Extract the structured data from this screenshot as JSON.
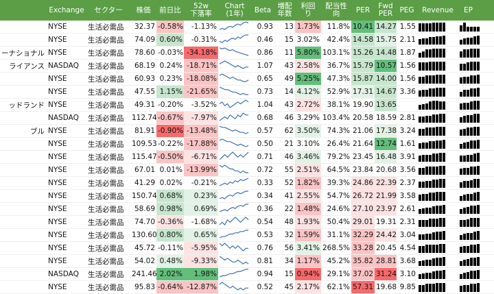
{
  "headers": {
    "name": "",
    "exchange": "Exchange",
    "sector": "セクター",
    "price": "株価",
    "change": "前日比",
    "w52": "52w\n下落率",
    "chart": "Chart\n(1年)",
    "beta": "Beta",
    "div_years": "増配\n年数",
    "yield": "利回\nり",
    "payout": "配当性\n向",
    "per": "PER",
    "fper": "Fwd\nPER",
    "peg": "PEG",
    "revenue": "Revenue",
    "eps": "EP"
  },
  "colors": {
    "header_bg": "#5b9e46",
    "strong_green": "#63be7b",
    "light_green": "#c6e6cd",
    "faint_green": "#e3f2e6",
    "strong_red": "#f8696b",
    "light_red": "#fbc4c4",
    "faint_red": "#fde2e2",
    "spark": "#3b6fb6"
  },
  "rows": [
    {
      "name": "",
      "exchange": "NYSE",
      "sector": "生活必需品",
      "price": "32.37",
      "change": "-0.58%",
      "w52": "-1.13%",
      "beta": "0.93",
      "div_years": "13",
      "yield": "1.73%",
      "payout": "11.8%",
      "per": "10.41",
      "fper": "14.27",
      "peg": "1.55",
      "change_bg": "light_red",
      "w52_bg": "",
      "yield_bg": "light_red",
      "per_bg": "strong_green",
      "fper_bg": "light_green",
      "spark": [
        5,
        6,
        5,
        7,
        8,
        7,
        9,
        10,
        9,
        11,
        12,
        11
      ],
      "rev": [
        9,
        9,
        9,
        9,
        10,
        10,
        10,
        10
      ],
      "eps": [
        4,
        6,
        3,
        3,
        3,
        3
      ]
    },
    {
      "name": "",
      "exchange": "NYSE",
      "sector": "生活必需品",
      "price": "74.09",
      "change": "0.60%",
      "w52": "-0.31%",
      "beta": "0.46",
      "div_years": "15",
      "yield": "3.02%",
      "payout": "42.4%",
      "per": "14.58",
      "fper": "15.75",
      "peg": "2.11",
      "change_bg": "light_green",
      "w52_bg": "",
      "yield_bg": "",
      "per_bg": "light_green",
      "fper_bg": "faint_green",
      "spark": [
        6,
        5,
        7,
        6,
        8,
        9,
        8,
        10,
        9,
        11,
        12,
        12
      ],
      "rev": [
        7,
        8,
        8,
        9,
        9,
        10,
        10,
        11
      ],
      "eps": [
        5,
        6,
        7,
        7,
        8,
        9
      ]
    },
    {
      "name": "ーナショナル",
      "exchange": "NYSE",
      "sector": "生活必需品",
      "price": "78.60",
      "change": "-0.03%",
      "w52": "-34.18%",
      "beta": "0.86",
      "div_years": "11",
      "yield": "5.80%",
      "payout": "103.1%",
      "per": "15.26",
      "fper": "14.48",
      "peg": "1.87",
      "change_bg": "",
      "w52_bg": "strong_red",
      "yield_bg": "strong_green",
      "per_bg": "light_green",
      "fper_bg": "light_green",
      "spark": [
        12,
        11,
        12,
        10,
        9,
        10,
        8,
        7,
        6,
        5,
        4,
        3
      ],
      "rev": [
        6,
        8,
        10,
        10,
        11,
        11,
        11,
        11
      ],
      "eps": [
        6,
        8,
        8,
        9,
        9,
        9
      ]
    },
    {
      "name": "ライアンス",
      "exchange": "NASDAQ",
      "sector": "生活必需品",
      "price": "68.19",
      "change": "0.24%",
      "w52": "-18.71%",
      "beta": "1.07",
      "div_years": "43",
      "yield": "2.58%",
      "payout": "36.7%",
      "per": "15.79",
      "fper": "10.57",
      "peg": "1.56",
      "change_bg": "",
      "w52_bg": "light_red",
      "yield_bg": "faint_red",
      "per_bg": "light_green",
      "fper_bg": "strong_green",
      "spark": [
        10,
        11,
        12,
        11,
        10,
        9,
        8,
        9,
        8,
        7,
        8,
        8
      ],
      "rev": [
        9,
        9,
        9,
        10,
        10,
        10,
        10,
        10
      ],
      "eps": [
        7,
        7,
        8,
        9,
        9,
        9
      ]
    },
    {
      "name": "",
      "exchange": "NYSE",
      "sector": "生活必需品",
      "price": "60.93",
      "change": "0.23%",
      "w52": "-18.08%",
      "beta": "0.65",
      "div_years": "49",
      "yield": "5.25%",
      "payout": "47.3%",
      "per": "15.87",
      "fper": "14.00",
      "peg": "1.56",
      "change_bg": "",
      "w52_bg": "light_red",
      "yield_bg": "strong_green",
      "per_bg": "light_green",
      "fper_bg": "light_green",
      "spark": [
        11,
        12,
        11,
        10,
        9,
        10,
        9,
        8,
        8,
        7,
        7,
        8
      ],
      "rev": [
        8,
        8,
        9,
        9,
        9,
        10,
        10,
        10
      ],
      "eps": [
        6,
        7,
        7,
        8,
        8,
        9
      ]
    },
    {
      "name": "",
      "exchange": "NYSE",
      "sector": "生活必需品",
      "price": "47.55",
      "change": "1.15%",
      "w52": "-21.65%",
      "beta": "0.73",
      "div_years": "14",
      "yield": "4.12%",
      "payout": "52.9%",
      "per": "17.31",
      "fper": "14.67",
      "peg": "3.36",
      "change_bg": "light_green",
      "w52_bg": "light_red",
      "yield_bg": "faint_green",
      "per_bg": "faint_green",
      "fper_bg": "light_green",
      "spark": [
        12,
        11,
        10,
        10,
        9,
        8,
        8,
        7,
        6,
        7,
        6,
        6
      ],
      "rev": [
        7,
        8,
        8,
        9,
        9,
        10,
        10,
        10
      ],
      "eps": [
        5,
        7,
        7,
        8,
        8,
        9
      ]
    },
    {
      "name": "ッドランド",
      "exchange": "NYSE",
      "sector": "生活必需品",
      "price": "49.31",
      "change": "-0.20%",
      "w52": "-3.52%",
      "beta": "1.04",
      "div_years": "43",
      "yield": "2.72%",
      "payout": "38.1%",
      "per": "19.90",
      "fper": "13.65",
      "peg": "",
      "change_bg": "",
      "w52_bg": "",
      "yield_bg": "faint_red",
      "per_bg": "",
      "fper_bg": "light_green",
      "spark": [
        8,
        9,
        7,
        8,
        6,
        7,
        8,
        9,
        8,
        9,
        10,
        9
      ],
      "rev": [
        6,
        7,
        8,
        10,
        11,
        11,
        10,
        10
      ],
      "eps": [
        6,
        7,
        7,
        8,
        9,
        9
      ]
    },
    {
      "name": "",
      "exchange": "NASDAQ",
      "sector": "生活必需品",
      "price": "112.74",
      "change": "-0.67%",
      "w52": "-7.97%",
      "beta": "0.68",
      "div_years": "46",
      "yield": "3.29%",
      "payout": "103.4%",
      "per": "20.58",
      "fper": "18.59",
      "peg": "2.81",
      "change_bg": "light_red",
      "w52_bg": "faint_red",
      "yield_bg": "",
      "per_bg": "",
      "fper_bg": "",
      "spark": [
        7,
        8,
        9,
        8,
        10,
        9,
        8,
        10,
        9,
        11,
        10,
        10
      ],
      "rev": [
        7,
        7,
        8,
        8,
        9,
        9,
        10,
        10
      ],
      "eps": [
        5,
        6,
        7,
        7,
        8,
        8
      ]
    },
    {
      "name": "ブル",
      "exchange": "NYSE",
      "sector": "生活必需品",
      "price": "81.91",
      "change": "-0.90%",
      "w52": "-13.48%",
      "beta": "0.57",
      "div_years": "62",
      "yield": "3.50%",
      "payout": "74.3%",
      "per": "21.06",
      "fper": "17.38",
      "peg": "3.24",
      "change_bg": "strong_red",
      "w52_bg": "light_red",
      "yield_bg": "faint_green",
      "per_bg": "",
      "fper_bg": "faint_green",
      "spark": [
        12,
        11,
        11,
        10,
        9,
        8,
        9,
        8,
        7,
        7,
        6,
        7
      ],
      "rev": [
        8,
        8,
        9,
        9,
        9,
        10,
        10,
        10
      ],
      "eps": [
        6,
        7,
        8,
        8,
        9,
        9
      ]
    },
    {
      "name": "",
      "exchange": "NYSE",
      "sector": "生活必需品",
      "price": "109.53",
      "change": "-0.22%",
      "w52": "-17.88%",
      "beta": "0.50",
      "div_years": "21",
      "yield": "3.10%",
      "payout": "26.4%",
      "per": "21.64",
      "fper": "12.74",
      "peg": "1.61",
      "change_bg": "",
      "w52_bg": "light_red",
      "yield_bg": "",
      "per_bg": "",
      "fper_bg": "strong_green",
      "spark": [
        11,
        12,
        11,
        10,
        10,
        9,
        8,
        7,
        8,
        7,
        6,
        7
      ],
      "rev": [
        7,
        8,
        8,
        9,
        9,
        10,
        10,
        11
      ],
      "eps": [
        5,
        6,
        7,
        8,
        8,
        9
      ]
    },
    {
      "name": "",
      "exchange": "NYSE",
      "sector": "生活必需品",
      "price": "115.47",
      "change": "-0.50%",
      "w52": "-6.71%",
      "beta": "0.71",
      "div_years": "46",
      "yield": "3.46%",
      "payout": "79.2%",
      "per": "23.45",
      "fper": "16.48",
      "peg": "3.91",
      "change_bg": "light_red",
      "w52_bg": "faint_red",
      "yield_bg": "faint_green",
      "per_bg": "",
      "fper_bg": "faint_green",
      "spark": [
        8,
        9,
        10,
        9,
        10,
        11,
        10,
        9,
        10,
        9,
        10,
        11
      ],
      "rev": [
        7,
        8,
        8,
        8,
        9,
        9,
        10,
        10
      ],
      "eps": [
        6,
        6,
        7,
        7,
        8,
        9
      ]
    },
    {
      "name": "",
      "exchange": "NYSE",
      "sector": "生活必需品",
      "price": "67.01",
      "change": "0.01%",
      "w52": "-13.99%",
      "beta": "0.72",
      "div_years": "55",
      "yield": "2.51%",
      "payout": "64.5%",
      "per": "23.84",
      "fper": "20.68",
      "peg": "3.56",
      "change_bg": "",
      "w52_bg": "light_red",
      "yield_bg": "faint_red",
      "per_bg": "",
      "fper_bg": "",
      "spark": [
        11,
        10,
        11,
        10,
        9,
        9,
        8,
        8,
        7,
        8,
        7,
        7
      ],
      "rev": [
        8,
        8,
        9,
        9,
        9,
        9,
        10,
        10
      ],
      "eps": [
        6,
        7,
        7,
        8,
        8,
        9
      ]
    },
    {
      "name": "",
      "exchange": "NYSE",
      "sector": "生活必需品",
      "price": "41.29",
      "change": "0.02%",
      "w52": "-0.21%",
      "beta": "0.33",
      "div_years": "52",
      "yield": "1.82%",
      "payout": "39.3%",
      "per": "24.86",
      "fper": "22.39",
      "peg": "2.37",
      "change_bg": "",
      "w52_bg": "",
      "yield_bg": "light_red",
      "per_bg": "faint_red",
      "fper_bg": "faint_red",
      "spark": [
        6,
        7,
        8,
        7,
        9,
        8,
        10,
        9,
        11,
        10,
        11,
        12
      ],
      "rev": [
        7,
        7,
        8,
        8,
        9,
        9,
        10,
        10
      ],
      "eps": [
        5,
        6,
        6,
        7,
        8,
        8
      ]
    },
    {
      "name": "",
      "exchange": "NYSE",
      "sector": "生活必需品",
      "price": "150.74",
      "change": "0.68%",
      "w52": "0.23%",
      "beta": "0.34",
      "div_years": "41",
      "yield": "2.55%",
      "payout": "54.7%",
      "per": "26.72",
      "fper": "21.99",
      "peg": "3.58",
      "change_bg": "light_green",
      "w52_bg": "faint_green",
      "yield_bg": "faint_red",
      "per_bg": "faint_red",
      "fper_bg": "faint_red",
      "spark": [
        6,
        7,
        6,
        8,
        9,
        8,
        10,
        11,
        10,
        11,
        12,
        12
      ],
      "rev": [
        7,
        8,
        8,
        9,
        9,
        10,
        10,
        10
      ],
      "eps": [
        5,
        6,
        7,
        7,
        8,
        9
      ]
    },
    {
      "name": "",
      "exchange": "NYSE",
      "sector": "生活必需品",
      "price": "58.69",
      "change": "0.98%",
      "w52": "0.69%",
      "beta": "0.36",
      "div_years": "22",
      "yield": "1.48%",
      "payout": "24.6%",
      "per": "27.10",
      "fper": "23.97",
      "peg": "2.61",
      "change_bg": "light_green",
      "w52_bg": "faint_green",
      "yield_bg": "light_red",
      "per_bg": "faint_red",
      "fper_bg": "faint_red",
      "spark": [
        5,
        6,
        7,
        6,
        8,
        9,
        8,
        10,
        11,
        10,
        12,
        12
      ],
      "rev": [
        6,
        7,
        8,
        8,
        9,
        10,
        10,
        11
      ],
      "eps": [
        5,
        6,
        7,
        8,
        8,
        9
      ]
    },
    {
      "name": "",
      "exchange": "NYSE",
      "sector": "生活必需品",
      "price": "74.70",
      "change": "-0.36%",
      "w52": "-1.68%",
      "beta": "0.54",
      "div_years": "48",
      "yield": "1.93%",
      "payout": "50.4%",
      "per": "29.01",
      "fper": "19.31",
      "peg": "2.31",
      "change_bg": "faint_red",
      "w52_bg": "",
      "yield_bg": "faint_red",
      "per_bg": "faint_red",
      "fper_bg": "",
      "spark": [
        8,
        9,
        8,
        10,
        9,
        10,
        11,
        10,
        9,
        10,
        11,
        10
      ],
      "rev": [
        8,
        8,
        8,
        9,
        9,
        9,
        10,
        10
      ],
      "eps": [
        6,
        6,
        7,
        8,
        8,
        8
      ]
    },
    {
      "name": "",
      "exchange": "NYSE",
      "sector": "生活必需品",
      "price": "130.60",
      "change": "0.80%",
      "w52": "0.65%",
      "beta": "0.53",
      "div_years": "32",
      "yield": "1.59%",
      "payout": "31.1%",
      "per": "32.29",
      "fper": "24.42",
      "peg": "3.04",
      "change_bg": "light_green",
      "w52_bg": "faint_green",
      "yield_bg": "light_red",
      "per_bg": "light_red",
      "fper_bg": "faint_red",
      "spark": [
        6,
        7,
        7,
        8,
        9,
        9,
        10,
        10,
        11,
        11,
        12,
        12
      ],
      "rev": [
        7,
        7,
        8,
        8,
        9,
        10,
        10,
        11
      ],
      "eps": [
        5,
        6,
        7,
        7,
        8,
        9
      ]
    },
    {
      "name": "",
      "exchange": "NYSE",
      "sector": "生活必需品",
      "price": "45.72",
      "change": "-0.11%",
      "w52": "-5.95%",
      "beta": "0.76",
      "div_years": "56",
      "yield": "3.41%",
      "payout": "268.5%",
      "per": "33.28",
      "fper": "20.45",
      "peg": "4.54",
      "change_bg": "",
      "w52_bg": "faint_red",
      "yield_bg": "faint_green",
      "per_bg": "light_red",
      "fper_bg": "",
      "spark": [
        10,
        9,
        10,
        9,
        8,
        9,
        8,
        9,
        8,
        7,
        8,
        8
      ],
      "rev": [
        8,
        8,
        9,
        9,
        9,
        9,
        10,
        10
      ],
      "eps": [
        6,
        7,
        7,
        8,
        8,
        9
      ]
    },
    {
      "name": "",
      "exchange": "NYSE",
      "sector": "生活必需品",
      "price": "54.02",
      "change": "0.48%",
      "w52": "-9.33%",
      "beta": "0.81",
      "div_years": "34",
      "yield": "1.17%",
      "payout": "45.2%",
      "per": "35.82",
      "fper": "28.81",
      "peg": "3.68",
      "change_bg": "faint_green",
      "w52_bg": "faint_red",
      "yield_bg": "light_red",
      "per_bg": "light_red",
      "fper_bg": "light_red",
      "spark": [
        11,
        10,
        9,
        10,
        9,
        8,
        8,
        9,
        8,
        7,
        8,
        7
      ],
      "rev": [
        6,
        7,
        8,
        8,
        9,
        10,
        10,
        11
      ],
      "eps": [
        5,
        6,
        7,
        8,
        8,
        9
      ]
    },
    {
      "name": "",
      "exchange": "NASDAQ",
      "sector": "生活必需品",
      "price": "241.46",
      "change": "2.02%",
      "w52": "1.98%",
      "beta": "0.94",
      "div_years": "15",
      "yield": "0.94%",
      "payout": "29.1%",
      "per": "37.02",
      "fper": "31.24",
      "peg": "3.10",
      "change_bg": "strong_green",
      "w52_bg": "strong_green",
      "yield_bg": "strong_red",
      "per_bg": "light_red",
      "fper_bg": "strong_red",
      "spark": [
        5,
        6,
        6,
        7,
        8,
        8,
        9,
        10,
        10,
        11,
        12,
        12
      ],
      "rev": [
        6,
        7,
        8,
        8,
        9,
        10,
        10,
        11
      ],
      "eps": [
        5,
        6,
        7,
        8,
        8,
        9
      ]
    },
    {
      "name": "",
      "exchange": "NYSE",
      "sector": "生活必需品",
      "price": "95.83",
      "change": "-0.64%",
      "w52": "-12.87%",
      "beta": "0.52",
      "div_years": "45",
      "yield": "2.17%",
      "payout": "62.1%",
      "per": "57.31",
      "fper": "19.68",
      "peg": "9.85",
      "change_bg": "light_red",
      "w52_bg": "light_red",
      "yield_bg": "faint_red",
      "per_bg": "strong_red",
      "fper_bg": "",
      "spark": [
        11,
        12,
        11,
        10,
        9,
        10,
        9,
        8,
        9,
        8,
        9,
        9
      ],
      "rev": [
        8,
        8,
        9,
        9,
        9,
        10,
        10,
        10
      ],
      "eps": [
        6,
        7,
        7,
        8,
        8,
        9
      ]
    }
  ]
}
